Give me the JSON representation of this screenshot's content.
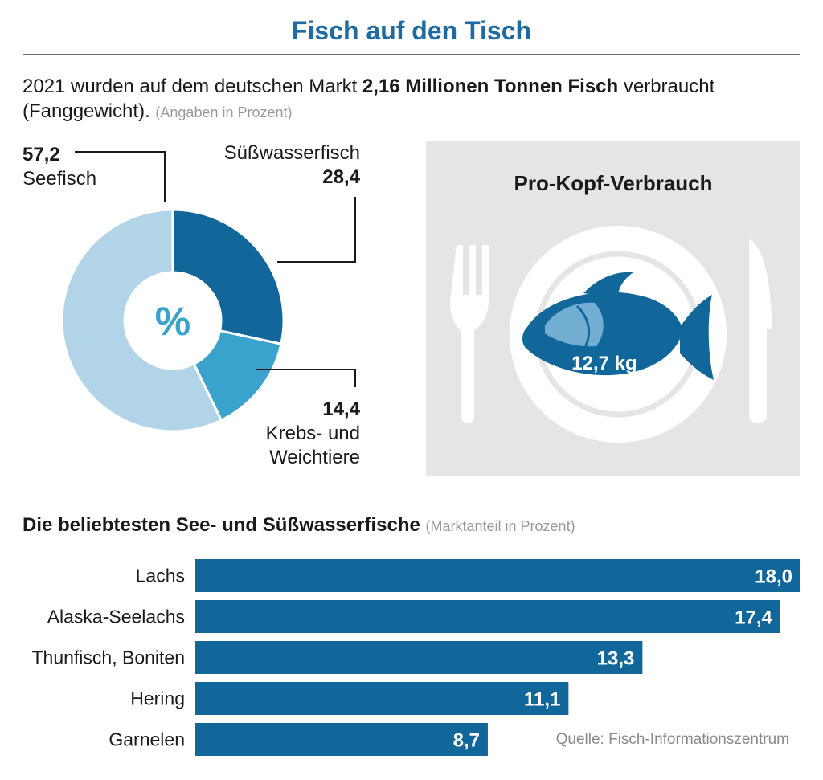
{
  "title": "Fisch auf den Tisch",
  "intro": {
    "part1": "2021 wurden auf dem deutschen Markt ",
    "bold": "2,16 Millionen Tonnen Fisch",
    "part2": " verbraucht (Fanggewicht). ",
    "note": "(Angaben in Prozent)"
  },
  "donut_center": "%",
  "per_capita": {
    "title": "Pro-Kopf-Verbrauch",
    "value": "12,7 kg"
  },
  "bars_title": "Die beliebtesten See- und Süßwasserfische",
  "bars_note": "(Marktanteil in Prozent)",
  "source": "Quelle: Fisch-Informationszentrum",
  "colors": {
    "seefisch": "#b2d4e9",
    "suesswasser": "#11679a",
    "krebs": "#3aa3cd",
    "bar": "#11679a",
    "accent": "#1f6aa0",
    "panel": "#e5e5e5"
  },
  "chart_data": [
    {
      "type": "pie",
      "title": "",
      "slices": [
        {
          "label": "Seefisch",
          "value": 57.2,
          "display": "57,2"
        },
        {
          "label": "Süßwasserfisch",
          "value": 28.4,
          "display": "28,4"
        },
        {
          "label": "Krebs- und Weichtiere",
          "label_line1": "Krebs- und",
          "label_line2": "Weichtiere",
          "value": 14.4,
          "display": "14,4"
        }
      ]
    },
    {
      "type": "bar",
      "title": "Die beliebtesten See- und Süßwasserfische",
      "categories": [
        "Lachs",
        "Alaska-Seelachs",
        "Thunfisch, Boniten",
        "Hering",
        "Garnelen"
      ],
      "values": [
        18.0,
        17.4,
        13.3,
        11.1,
        8.7
      ],
      "value_labels": [
        "18,0",
        "17,4",
        "13,3",
        "11,1",
        "8,7"
      ],
      "xlim": [
        0,
        18
      ],
      "grid": false,
      "legend": "none"
    }
  ]
}
